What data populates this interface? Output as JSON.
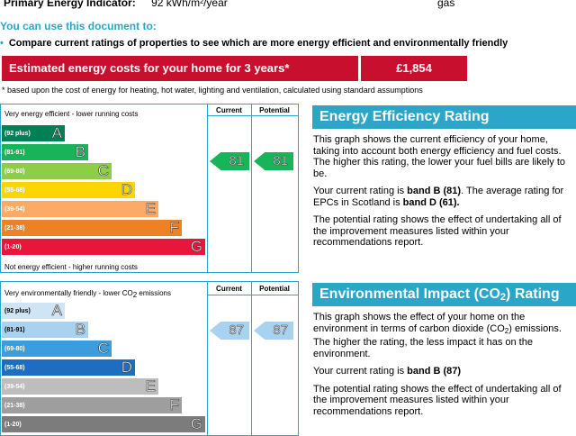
{
  "header": {
    "pei_label": "Primary Energy Indicator:",
    "pei_value": "92 kWh/m²/year",
    "fuel": "gas"
  },
  "intro": {
    "heading": "You can use this document to:",
    "bullet": "Compare current ratings of properties to see which are more energy efficient and environmentally friendly"
  },
  "cost": {
    "label": "Estimated energy costs for your home for 3 years*",
    "value": "£1,854",
    "footnote": "* based upon the cost of energy for heating, hot water, lighting and ventilation, calculated using standard assumptions"
  },
  "energy_chart": {
    "top_label": "Very energy efficient - lower running costs",
    "bottom_label": "Not energy efficient - higher running costs",
    "col_current": "Current",
    "col_potential": "Potential",
    "bands": [
      {
        "range": "(92 plus)",
        "letter": "A",
        "color": "#008054"
      },
      {
        "range": "(81-91)",
        "letter": "B",
        "color": "#19b459"
      },
      {
        "range": "(69-80)",
        "letter": "C",
        "color": "#8dce46"
      },
      {
        "range": "(55-68)",
        "letter": "D",
        "color": "#ffd500"
      },
      {
        "range": "(39-54)",
        "letter": "E",
        "color": "#fcaa65"
      },
      {
        "range": "(21-38)",
        "letter": "F",
        "color": "#ef8023"
      },
      {
        "range": "(1-20)",
        "letter": "G",
        "color": "#e9153b"
      }
    ],
    "current": "81",
    "potential": "81",
    "arrow_color": "#19b459"
  },
  "energy_panel": {
    "title": "Energy Efficiency Rating",
    "p1": "This graph shows the current efficiency of your home, taking into account both energy efficiency and fuel costs. The higher this rating, the lower your fuel bills are likely to be.",
    "p2_a": "Your current rating is ",
    "p2_b": "band B (81)",
    "p2_c": ". The average rating for EPCs in Scotland is ",
    "p2_d": "band D (61).",
    "p3": "The potential rating shows the effect of undertaking all of the improvement measures listed within your recommendations report."
  },
  "co2_chart": {
    "top_label_a": "Very environmentally friendly - lower CO",
    "top_label_sub": "2",
    "top_label_b": " emissions",
    "col_current": "Current",
    "col_potential": "Potential",
    "bands": [
      {
        "range": "(92 plus)",
        "letter": "A",
        "color": "#cfe5f6"
      },
      {
        "range": "(81-91)",
        "letter": "B",
        "color": "#a8d2f0"
      },
      {
        "range": "(69-80)",
        "letter": "C",
        "color": "#3b9ddb"
      },
      {
        "range": "(55-68)",
        "letter": "D",
        "color": "#1f6dc1"
      },
      {
        "range": "(39-54)",
        "letter": "E",
        "color": "#bdbdbd"
      },
      {
        "range": "(21-38)",
        "letter": "F",
        "color": "#9e9e9e"
      },
      {
        "range": "(1-20)",
        "letter": "G",
        "color": "#7c7c7c"
      }
    ],
    "current": "87",
    "potential": "87",
    "arrow_color": "#a8d2f0"
  },
  "co2_panel": {
    "title_a": "Environmental Impact (CO",
    "title_sub": "2",
    "title_b": ") Rating",
    "p1_a": "This graph shows the effect of your home on the environment in terms of carbon dioxide (CO",
    "p1_sub": "2",
    "p1_b": ") emissions. The higher the rating, the less impact it has on the environment.",
    "p2_a": "Your current rating is ",
    "p2_b": "band B (87)",
    "p3": "The potential rating shows the effect of undertaking all of the improvement measures listed within your recommendations report."
  }
}
